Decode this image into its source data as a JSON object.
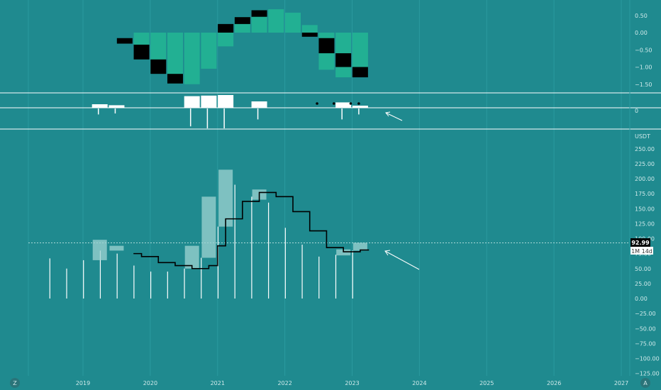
{
  "colors": {
    "background": "#1f8a8f",
    "teal_bar": "#22b093",
    "dark_bar": "#000000",
    "white": "#ffffff",
    "candle_fill": "#9fd3d1",
    "axis_text": "#cfe9ea",
    "price_label_bg": "#000000"
  },
  "x_axis": {
    "ticks": [
      "2019",
      "2020",
      "2021",
      "2022",
      "2023",
      "2024",
      "2025",
      "2026",
      "2027"
    ]
  },
  "corner_buttons": {
    "left": "Z",
    "right": "A"
  },
  "price_tag": {
    "value": "92.99",
    "interval": "1M 14d"
  },
  "chart_data": [
    {
      "name": "oscillator",
      "type": "bar",
      "y_ticks": [
        "0.50",
        "0.00",
        "−0.50",
        "−1.00",
        "−1.50"
      ],
      "ylim": [
        -1.55,
        0.7
      ],
      "bars": [
        {
          "x": 2019.62,
          "from": -0.16,
          "to": -0.32,
          "color": "dark"
        },
        {
          "x": 2019.87,
          "from": 0.0,
          "to": -0.78,
          "color": "teal"
        },
        {
          "x": 2019.87,
          "from": -0.35,
          "to": -0.78,
          "color": "dark"
        },
        {
          "x": 2020.12,
          "from": 0.0,
          "to": -1.2,
          "color": "teal"
        },
        {
          "x": 2020.12,
          "from": -0.78,
          "to": -1.2,
          "color": "dark"
        },
        {
          "x": 2020.37,
          "from": 0.0,
          "to": -1.48,
          "color": "teal"
        },
        {
          "x": 2020.37,
          "from": -1.2,
          "to": -1.48,
          "color": "dark"
        },
        {
          "x": 2020.62,
          "from": 0.0,
          "to": -1.5,
          "color": "teal"
        },
        {
          "x": 2020.87,
          "from": 0.0,
          "to": -1.05,
          "color": "teal"
        },
        {
          "x": 2021.12,
          "from": 0.0,
          "to": -0.4,
          "color": "teal"
        },
        {
          "x": 2021.12,
          "from": 0.25,
          "to": 0.0,
          "color": "dark"
        },
        {
          "x": 2021.37,
          "from": 0.45,
          "to": 0.0,
          "color": "teal"
        },
        {
          "x": 2021.37,
          "from": 0.45,
          "to": 0.25,
          "color": "dark"
        },
        {
          "x": 2021.62,
          "from": 0.65,
          "to": 0.0,
          "color": "teal"
        },
        {
          "x": 2021.62,
          "from": 0.65,
          "to": 0.46,
          "color": "dark"
        },
        {
          "x": 2021.87,
          "from": 0.68,
          "to": 0.0,
          "color": "teal"
        },
        {
          "x": 2022.12,
          "from": 0.58,
          "to": 0.0,
          "color": "teal"
        },
        {
          "x": 2022.37,
          "from": 0.22,
          "to": 0.0,
          "color": "teal"
        },
        {
          "x": 2022.37,
          "from": 0.0,
          "to": -0.12,
          "color": "dark"
        },
        {
          "x": 2022.62,
          "from": 0.0,
          "to": -1.08,
          "color": "teal"
        },
        {
          "x": 2022.62,
          "from": -0.16,
          "to": -0.6,
          "color": "dark"
        },
        {
          "x": 2022.87,
          "from": 0.0,
          "to": -1.3,
          "color": "teal"
        },
        {
          "x": 2022.87,
          "from": -0.6,
          "to": -1.0,
          "color": "dark"
        },
        {
          "x": 2023.12,
          "from": 0.0,
          "to": -1.3,
          "color": "teal"
        },
        {
          "x": 2023.12,
          "from": -1.0,
          "to": -1.3,
          "color": "dark"
        }
      ]
    },
    {
      "name": "volume_indicator",
      "type": "bar",
      "y_ticks": [
        "0"
      ],
      "up_bars": [
        {
          "x": 2019.25,
          "h": 0.25
        },
        {
          "x": 2019.5,
          "h": 0.18
        },
        {
          "x": 2020.62,
          "h": 0.82
        },
        {
          "x": 2020.87,
          "h": 0.86
        },
        {
          "x": 2021.12,
          "h": 0.9
        },
        {
          "x": 2021.62,
          "h": 0.45
        },
        {
          "x": 2022.87,
          "h": 0.38
        },
        {
          "x": 2023.12,
          "h": 0.15
        }
      ],
      "down_lines": [
        {
          "x": 2019.25,
          "h": 0.3
        },
        {
          "x": 2019.5,
          "h": 0.25
        },
        {
          "x": 2020.62,
          "h": 0.9
        },
        {
          "x": 2020.87,
          "h": 1.0
        },
        {
          "x": 2021.12,
          "h": 1.0
        },
        {
          "x": 2021.62,
          "h": 0.55
        },
        {
          "x": 2022.87,
          "h": 0.55
        },
        {
          "x": 2023.12,
          "h": 0.3
        }
      ],
      "dots": [
        2022.5,
        2022.75,
        2023.0,
        2023.12
      ]
    },
    {
      "name": "price",
      "type": "bar",
      "ylabel": "USDT",
      "y_ticks": [
        250,
        225,
        200,
        175,
        150,
        125,
        100,
        75,
        50,
        25,
        0,
        -25,
        -50,
        -75,
        -100,
        -125
      ],
      "ylim": [
        -127,
        255
      ],
      "current_price": 92.99,
      "candles": [
        {
          "x": 2019.25,
          "open": 64,
          "close": 98
        },
        {
          "x": 2019.5,
          "open": 80,
          "close": 88
        },
        {
          "x": 2020.62,
          "open": 50,
          "close": 88
        },
        {
          "x": 2020.87,
          "open": 68,
          "close": 170
        },
        {
          "x": 2021.12,
          "open": 120,
          "close": 215
        },
        {
          "x": 2021.62,
          "open": 165,
          "close": 182
        },
        {
          "x": 2022.87,
          "open": 72,
          "close": 82
        },
        {
          "x": 2023.12,
          "open": 80,
          "close": 93
        }
      ],
      "sticks": [
        {
          "x": 2018.75,
          "top": 67
        },
        {
          "x": 2019.0,
          "top": 50
        },
        {
          "x": 2019.25,
          "top": 64
        },
        {
          "x": 2019.5,
          "top": 80
        },
        {
          "x": 2019.75,
          "top": 75
        },
        {
          "x": 2020.0,
          "top": 55
        },
        {
          "x": 2020.25,
          "top": 45
        },
        {
          "x": 2020.5,
          "top": 45
        },
        {
          "x": 2020.75,
          "top": 50
        },
        {
          "x": 2021.0,
          "top": 68
        },
        {
          "x": 2021.25,
          "top": 120
        },
        {
          "x": 2021.5,
          "top": 190
        },
        {
          "x": 2021.75,
          "top": 170
        },
        {
          "x": 2022.0,
          "top": 160
        },
        {
          "x": 2022.25,
          "top": 118
        },
        {
          "x": 2022.5,
          "top": 90
        },
        {
          "x": 2022.75,
          "top": 70
        },
        {
          "x": 2023.0,
          "top": 73
        },
        {
          "x": 2023.25,
          "top": 80
        }
      ],
      "step_line": [
        [
          2019.75,
          75
        ],
        [
          2019.87,
          75
        ],
        [
          2019.87,
          70
        ],
        [
          2020.12,
          70
        ],
        [
          2020.12,
          60
        ],
        [
          2020.37,
          60
        ],
        [
          2020.37,
          55
        ],
        [
          2020.62,
          55
        ],
        [
          2020.62,
          50
        ],
        [
          2020.87,
          50
        ],
        [
          2020.87,
          55
        ],
        [
          2021.0,
          55
        ],
        [
          2021.0,
          88
        ],
        [
          2021.12,
          88
        ],
        [
          2021.12,
          133
        ],
        [
          2021.37,
          133
        ],
        [
          2021.37,
          162
        ],
        [
          2021.62,
          162
        ],
        [
          2021.62,
          177
        ],
        [
          2021.87,
          177
        ],
        [
          2021.87,
          170
        ],
        [
          2022.12,
          170
        ],
        [
          2022.12,
          145
        ],
        [
          2022.37,
          145
        ],
        [
          2022.37,
          113
        ],
        [
          2022.62,
          113
        ],
        [
          2022.62,
          85
        ],
        [
          2022.87,
          85
        ],
        [
          2022.87,
          78
        ],
        [
          2023.12,
          78
        ],
        [
          2023.12,
          81
        ],
        [
          2023.25,
          81
        ]
      ]
    }
  ]
}
